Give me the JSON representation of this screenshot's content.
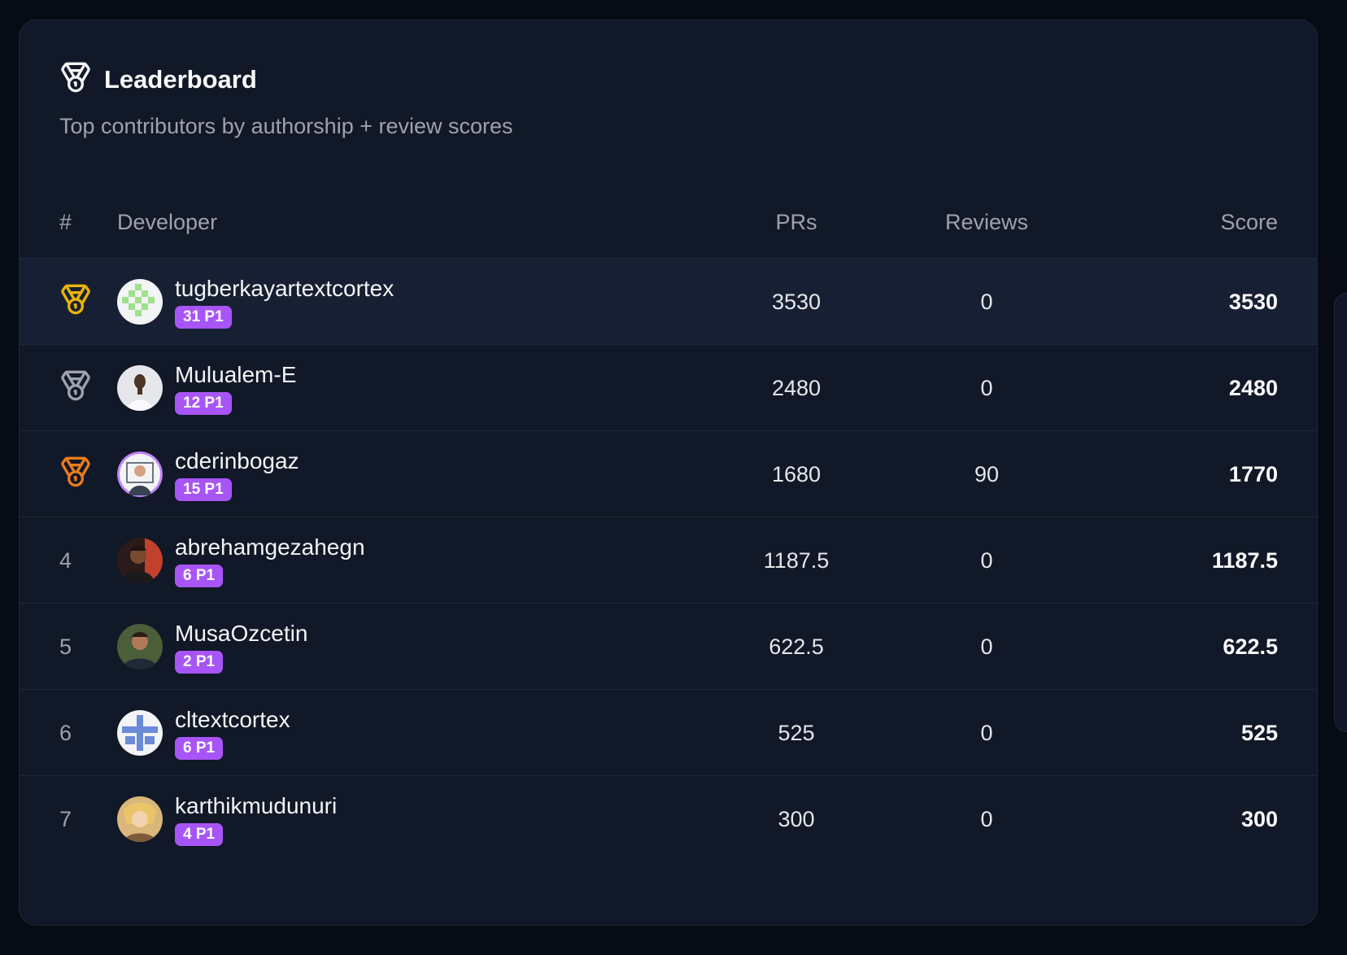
{
  "header": {
    "icon": "medal-icon",
    "title": "Leaderboard",
    "subtitle": "Top contributors by authorship + review scores"
  },
  "columns": {
    "rank": "#",
    "developer": "Developer",
    "prs": "PRs",
    "reviews": "Reviews",
    "score": "Score"
  },
  "colors": {
    "gold": "#eab308",
    "silver": "#9ca3af",
    "bronze": "#ea7c1a",
    "badge": "#a855f7"
  },
  "rows": [
    {
      "rank": "",
      "rank_icon": "gold-medal-icon",
      "name": "tugberkayartextcortex",
      "badge": "31 P1",
      "prs": "3530",
      "reviews": "0",
      "score": "3530"
    },
    {
      "rank": "",
      "rank_icon": "silver-medal-icon",
      "name": "Mulualem-E",
      "badge": "12 P1",
      "prs": "2480",
      "reviews": "0",
      "score": "2480"
    },
    {
      "rank": "",
      "rank_icon": "bronze-medal-icon",
      "name": "cderinbogaz",
      "badge": "15 P1",
      "prs": "1680",
      "reviews": "90",
      "score": "1770"
    },
    {
      "rank": "4",
      "name": "abrehamgezahegn",
      "badge": "6 P1",
      "prs": "1187.5",
      "reviews": "0",
      "score": "1187.5"
    },
    {
      "rank": "5",
      "name": "MusaOzcetin",
      "badge": "2 P1",
      "prs": "622.5",
      "reviews": "0",
      "score": "622.5"
    },
    {
      "rank": "6",
      "name": "cltextcortex",
      "badge": "6 P1",
      "prs": "525",
      "reviews": "0",
      "score": "525"
    },
    {
      "rank": "7",
      "name": "karthikmudunuri",
      "badge": "4 P1",
      "prs": "300",
      "reviews": "0",
      "score": "300"
    }
  ]
}
